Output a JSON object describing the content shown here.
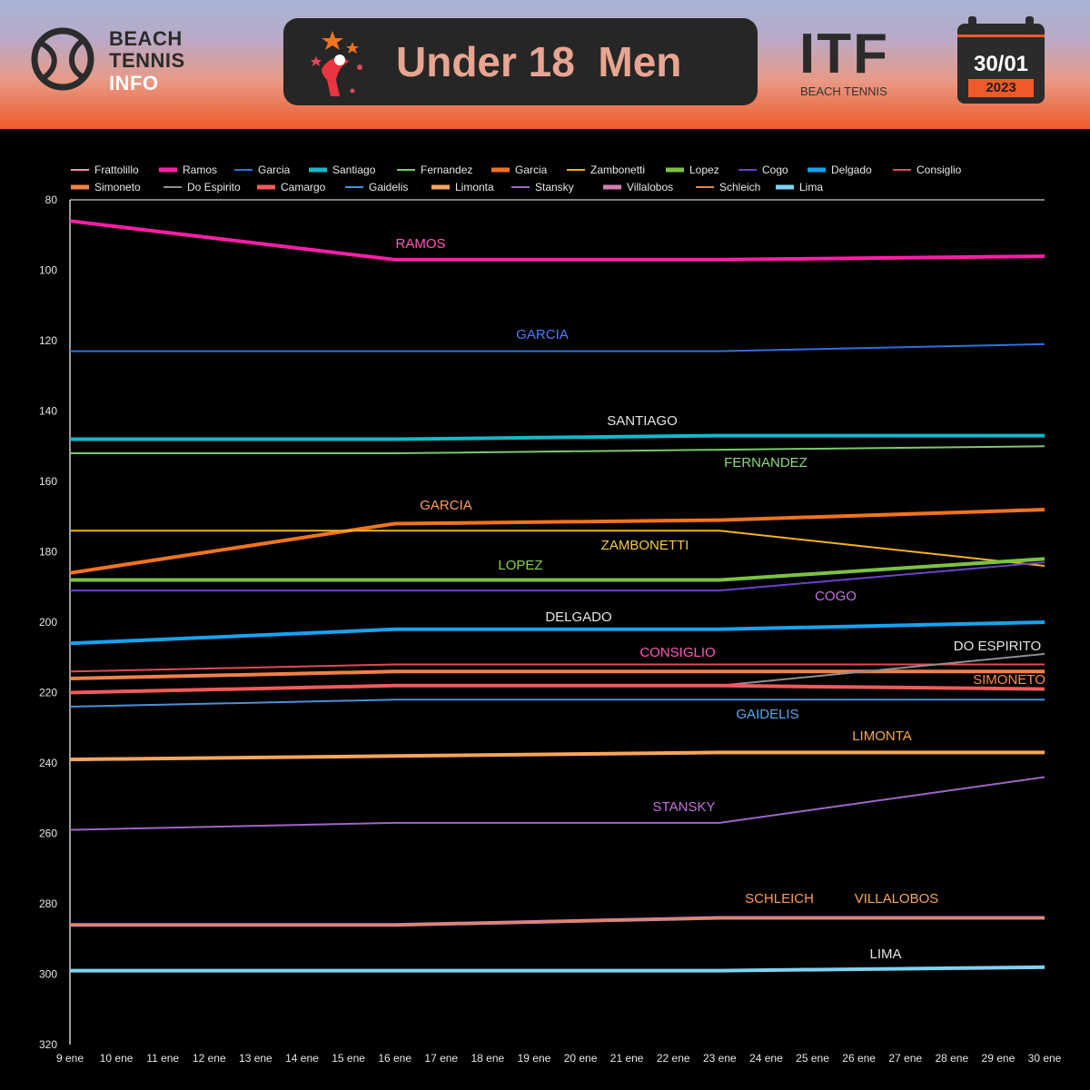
{
  "header": {
    "logo_line1": "BEACH",
    "logo_line2": "TENNIS",
    "logo_line3": "INFO",
    "title": "Under 18  Men",
    "org": "ITF",
    "org_sub": "BEACH TENNIS",
    "date": "30/01",
    "year": "2023",
    "icons": [
      "tennis-ball-icon",
      "trophy-player-icon",
      "calendar-icon"
    ]
  },
  "chart_data": {
    "type": "line",
    "x_ticks": [
      "9 ene",
      "10 ene",
      "11 ene",
      "12 ene",
      "13 ene",
      "14 ene",
      "15 ene",
      "16 ene",
      "17 ene",
      "18 ene",
      "19 ene",
      "20 ene",
      "21 ene",
      "22 ene",
      "23 ene",
      "24 ene",
      "25 ene",
      "26 ene",
      "27 ene",
      "28 ene",
      "29 ene",
      "30 ene"
    ],
    "x": [
      "9 ene",
      "16 ene",
      "23 ene",
      "30 ene"
    ],
    "y_ticks": [
      80,
      100,
      120,
      140,
      160,
      180,
      200,
      220,
      240,
      260,
      280,
      300,
      320
    ],
    "ylim": [
      80,
      320
    ],
    "y_inverted": true,
    "grid": false,
    "legend_position": "top",
    "series": [
      {
        "name": "Frattolillo",
        "color": "#f48fb1",
        "values": [
          286,
          286,
          284,
          284
        ],
        "width": 2
      },
      {
        "name": "Ramos",
        "color": "#ff1fa6",
        "values": [
          86,
          97,
          97,
          96
        ],
        "width": 4,
        "label": "RAMOS",
        "label_color": "#ff5ab8"
      },
      {
        "name": "Garcia",
        "color": "#2f6fe0",
        "values": [
          123,
          123,
          123,
          121
        ],
        "width": 2,
        "label": "GARCIA",
        "label_color": "#4f7cff"
      },
      {
        "name": "Santiago",
        "color": "#14b8c8",
        "values": [
          148,
          148,
          147,
          147
        ],
        "width": 4,
        "label": "SANTIAGO",
        "label_color": "#e4e4e4"
      },
      {
        "name": "Fernandez",
        "color": "#7ac96e",
        "values": [
          152,
          152,
          151,
          150
        ],
        "width": 2,
        "label": "FERNANDEZ",
        "label_color": "#8bd97d"
      },
      {
        "name": "Garcia",
        "color": "#f0731f",
        "values": [
          186,
          172,
          171,
          168
        ],
        "width": 4,
        "label": "GARCIA",
        "label_color": "#ff9a5c"
      },
      {
        "name": "Zambonetti",
        "color": "#f3b31c",
        "values": [
          174,
          174,
          174,
          184
        ],
        "width": 2,
        "label": "ZAMBONETTI",
        "label_color": "#f7c948"
      },
      {
        "name": "Lopez",
        "color": "#7cc242",
        "values": [
          188,
          188,
          188,
          182
        ],
        "width": 4,
        "label": "LOPEZ",
        "label_color": "#86d351"
      },
      {
        "name": "Cogo",
        "color": "#6a42c9",
        "values": [
          191,
          191,
          191,
          183
        ],
        "width": 2,
        "label": "COGO",
        "label_color": "#c86ee3"
      },
      {
        "name": "Delgado",
        "color": "#17a2f0",
        "values": [
          206,
          202,
          202,
          200
        ],
        "width": 4,
        "label": "DELGADO",
        "label_color": "#e4e4e4"
      },
      {
        "name": "Consiglio",
        "color": "#e0495a",
        "values": [
          214,
          212,
          212,
          212
        ],
        "width": 2,
        "label": "CONSIGLIO",
        "label_color": "#ff58b8"
      },
      {
        "name": "Simoneto",
        "color": "#f08048",
        "values": [
          216,
          214,
          214,
          214
        ],
        "width": 4,
        "label": "SIMONETO",
        "label_color": "#ff8a50"
      },
      {
        "name": "Do Espirito",
        "color": "#8f8f8f",
        "values": [
          null,
          null,
          218,
          209
        ],
        "width": 2,
        "label": "DO ESPIRITO",
        "label_color": "#e4e4e4"
      },
      {
        "name": "Camargo",
        "color": "#f05a5a",
        "values": [
          220,
          218,
          218,
          219
        ],
        "width": 4
      },
      {
        "name": "Gaideliis",
        "display": "Gaidelis",
        "color": "#4a90d9",
        "values": [
          224,
          222,
          222,
          222
        ],
        "width": 2,
        "label": "GAIDELIS",
        "label_color": "#5aa8f0"
      },
      {
        "name": "Limonta",
        "color": "#f5a65b",
        "values": [
          239,
          238,
          237,
          237
        ],
        "width": 4,
        "label": "LIMONTA",
        "label_color": "#f7a94a"
      },
      {
        "name": "Stansky",
        "color": "#a064c9",
        "values": [
          259,
          257,
          257,
          244
        ],
        "width": 2,
        "label": "STANSKY",
        "label_color": "#c071e0"
      },
      {
        "name": "Villalobos",
        "color": "#d27fb0",
        "values": [
          286,
          286,
          284,
          284
        ],
        "width": 4,
        "label": "VILLALOBOS",
        "label_color": "#f5a65b"
      },
      {
        "name": "Schleich",
        "color": "#e0875a",
        "values": [
          286,
          286,
          284,
          284
        ],
        "width": 2,
        "label": "SCHLEICH",
        "label_color": "#ff9a5c"
      },
      {
        "name": "Lima",
        "color": "#7fd3f0",
        "values": [
          299,
          299,
          299,
          298
        ],
        "width": 4,
        "label": "LIMA",
        "label_color": "#e4e4e4"
      }
    ]
  }
}
